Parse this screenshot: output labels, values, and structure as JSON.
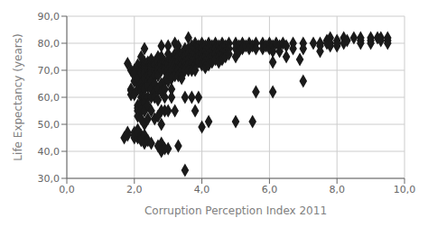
{
  "chart_data": {
    "type": "scatter",
    "xlabel": "Corruption Perception Index 2011",
    "ylabel": "Life Expectancy (years)",
    "xlim": [
      0,
      10
    ],
    "ylim": [
      30,
      90
    ],
    "xticks": [
      {
        "value": 0,
        "label": "0,0"
      },
      {
        "value": 2,
        "label": "2,0"
      },
      {
        "value": 4,
        "label": "4,0"
      },
      {
        "value": 6,
        "label": "6,0"
      },
      {
        "value": 8,
        "label": "8,0"
      },
      {
        "value": 10,
        "label": "10,0"
      }
    ],
    "yticks": [
      {
        "value": 30,
        "label": "30,0"
      },
      {
        "value": 40,
        "label": "40,0"
      },
      {
        "value": 50,
        "label": "50,0"
      },
      {
        "value": 60,
        "label": "60,0"
      },
      {
        "value": 70,
        "label": "70,0"
      },
      {
        "value": 80,
        "label": "80,0"
      },
      {
        "value": 90,
        "label": "90,0"
      }
    ],
    "marker": "diamond",
    "color": "#1a1a1a",
    "grid": true,
    "x": [
      1.7,
      1.8,
      1.8,
      1.8,
      1.9,
      1.9,
      1.9,
      1.9,
      2.0,
      2.0,
      2.0,
      2.0,
      2.0,
      2.0,
      2.0,
      2.0,
      2.1,
      2.1,
      2.1,
      2.1,
      2.1,
      2.1,
      2.1,
      2.1,
      2.1,
      2.1,
      2.1,
      2.1,
      2.2,
      2.2,
      2.2,
      2.2,
      2.2,
      2.2,
      2.2,
      2.2,
      2.2,
      2.2,
      2.2,
      2.2,
      2.2,
      2.2,
      2.2,
      2.3,
      2.3,
      2.3,
      2.3,
      2.3,
      2.3,
      2.3,
      2.3,
      2.3,
      2.3,
      2.3,
      2.3,
      2.3,
      2.3,
      2.4,
      2.4,
      2.4,
      2.4,
      2.4,
      2.4,
      2.4,
      2.4,
      2.4,
      2.4,
      2.5,
      2.5,
      2.5,
      2.5,
      2.5,
      2.5,
      2.5,
      2.5,
      2.5,
      2.5,
      2.6,
      2.6,
      2.6,
      2.6,
      2.6,
      2.6,
      2.6,
      2.6,
      2.7,
      2.7,
      2.7,
      2.7,
      2.7,
      2.7,
      2.7,
      2.7,
      2.7,
      2.8,
      2.8,
      2.8,
      2.8,
      2.8,
      2.8,
      2.8,
      2.8,
      2.8,
      2.8,
      2.8,
      2.9,
      2.9,
      2.9,
      2.9,
      2.9,
      2.9,
      2.9,
      2.9,
      3.0,
      3.0,
      3.0,
      3.0,
      3.0,
      3.0,
      3.0,
      3.0,
      3.0,
      3.1,
      3.1,
      3.1,
      3.1,
      3.1,
      3.1,
      3.1,
      3.2,
      3.2,
      3.2,
      3.2,
      3.2,
      3.2,
      3.2,
      3.2,
      3.3,
      3.3,
      3.3,
      3.3,
      3.3,
      3.3,
      3.3,
      3.3,
      3.4,
      3.4,
      3.4,
      3.4,
      3.4,
      3.4,
      3.5,
      3.5,
      3.5,
      3.5,
      3.5,
      3.5,
      3.5,
      3.6,
      3.6,
      3.6,
      3.6,
      3.6,
      3.6,
      3.7,
      3.7,
      3.7,
      3.7,
      3.7,
      3.7,
      3.8,
      3.8,
      3.8,
      3.8,
      3.8,
      3.8,
      3.8,
      3.9,
      3.9,
      3.9,
      3.9,
      3.9,
      4.0,
      4.0,
      4.0,
      4.0,
      4.0,
      4.0,
      4.1,
      4.1,
      4.1,
      4.1,
      4.1,
      4.2,
      4.2,
      4.2,
      4.2,
      4.2,
      4.2,
      4.3,
      4.3,
      4.3,
      4.3,
      4.4,
      4.4,
      4.4,
      4.4,
      4.5,
      4.5,
      4.5,
      4.5,
      4.6,
      4.6,
      4.6,
      4.6,
      4.7,
      4.7,
      4.7,
      4.8,
      4.8,
      4.8,
      5.0,
      5.0,
      5.0,
      5.0,
      5.1,
      5.1,
      5.2,
      5.2,
      5.3,
      5.4,
      5.4,
      5.5,
      5.5,
      5.6,
      5.6,
      5.6,
      5.8,
      5.8,
      5.9,
      6.0,
      6.0,
      6.1,
      6.1,
      6.1,
      6.1,
      6.2,
      6.3,
      6.3,
      6.4,
      6.5,
      6.5,
      6.7,
      6.7,
      6.9,
      7.0,
      7.0,
      7.0,
      7.3,
      7.5,
      7.5,
      7.5,
      7.7,
      7.7,
      7.8,
      7.8,
      7.8,
      8.0,
      8.0,
      8.0,
      8.2,
      8.2,
      8.3,
      8.5,
      8.7,
      8.7,
      8.7,
      9.0,
      9.0,
      9.0,
      9.2,
      9.3,
      9.3,
      9.5,
      9.5,
      9.5
    ],
    "values": [
      45.0,
      72.5,
      47.0,
      46.0,
      70.0,
      62.5,
      63.0,
      61.0,
      61.0,
      68.0,
      70.0,
      66.0,
      69.0,
      45.0,
      47.0,
      46.0,
      65.0,
      63.0,
      67.0,
      71.0,
      72.0,
      57.0,
      56.0,
      55.0,
      53.0,
      48.0,
      45.0,
      47.0,
      75.0,
      72.0,
      70.0,
      69.0,
      65.0,
      63.0,
      62.0,
      60.0,
      58.0,
      57.0,
      55.0,
      52.0,
      46.0,
      45.0,
      44.0,
      78.0,
      73.0,
      72.0,
      71.0,
      70.0,
      69.0,
      67.0,
      63.0,
      60.0,
      58.0,
      55.0,
      50.0,
      46.0,
      43.0,
      73.0,
      71.0,
      70.0,
      68.0,
      66.0,
      64.0,
      60.0,
      57.0,
      52.0,
      44.0,
      74.0,
      72.0,
      71.0,
      70.0,
      69.0,
      66.0,
      63.0,
      60.0,
      55.0,
      43.0,
      73.0,
      72.0,
      70.0,
      68.0,
      65.0,
      62.0,
      60.0,
      52.0,
      75.0,
      73.0,
      71.0,
      70.0,
      68.0,
      63.0,
      59.0,
      53.0,
      42.0,
      79.0,
      75.0,
      73.0,
      72.0,
      70.0,
      65.0,
      62.0,
      55.0,
      50.0,
      43.0,
      40.0,
      73.0,
      71.0,
      70.0,
      66.0,
      63.0,
      60.0,
      55.0,
      41.0,
      79.0,
      76.0,
      74.0,
      72.0,
      70.0,
      68.0,
      66.0,
      55.0,
      41.0,
      74.0,
      73.0,
      72.0,
      70.0,
      67.0,
      63.0,
      60.0,
      80.0,
      76.0,
      74.0,
      73.0,
      72.0,
      70.0,
      68.0,
      55.0,
      79.0,
      77.0,
      75.0,
      73.0,
      71.0,
      70.0,
      68.0,
      42.0,
      76.0,
      74.0,
      72.0,
      70.0,
      68.0,
      67.0,
      78.0,
      75.0,
      73.0,
      71.0,
      70.0,
      60.0,
      33.0,
      82.0,
      78.0,
      76.0,
      74.0,
      72.0,
      70.0,
      79.0,
      77.0,
      75.0,
      73.0,
      70.0,
      60.0,
      80.0,
      78.0,
      76.0,
      74.0,
      72.0,
      70.0,
      55.0,
      79.0,
      77.0,
      75.0,
      73.0,
      60.0,
      80.0,
      78.0,
      76.0,
      74.0,
      72.0,
      49.0,
      79.0,
      77.0,
      75.0,
      73.0,
      71.0,
      80.0,
      78.0,
      76.0,
      74.0,
      72.0,
      51.0,
      79.0,
      77.0,
      75.0,
      73.0,
      80.0,
      78.0,
      76.0,
      74.0,
      79.0,
      77.0,
      75.0,
      73.0,
      80.0,
      78.0,
      76.0,
      74.0,
      79.0,
      77.0,
      75.0,
      80.0,
      78.0,
      76.0,
      80.0,
      78.0,
      75.0,
      51.0,
      79.0,
      77.0,
      80.0,
      78.0,
      79.0,
      80.0,
      78.0,
      79.0,
      51.0,
      80.0,
      78.0,
      62.0,
      80.0,
      78.0,
      79.0,
      80.0,
      78.0,
      79.0,
      77.0,
      73.0,
      62.0,
      80.0,
      79.0,
      77.0,
      80.0,
      79.0,
      75.0,
      80.0,
      78.0,
      74.0,
      80.0,
      78.0,
      66.0,
      80.0,
      80.0,
      79.0,
      77.0,
      81.0,
      80.0,
      82.0,
      80.0,
      79.0,
      81.0,
      80.0,
      79.0,
      82.0,
      80.0,
      81.0,
      82.0,
      82.0,
      81.0,
      80.0,
      82.0,
      81.0,
      80.0,
      82.0,
      82.0,
      81.0,
      82.0,
      81.0,
      80.0
    ]
  }
}
